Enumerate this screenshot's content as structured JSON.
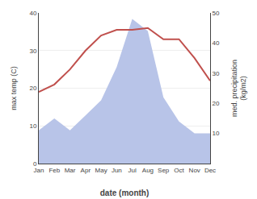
{
  "chart_data": {
    "type": "line",
    "categories": [
      "Jan",
      "Feb",
      "Mar",
      "Apr",
      "May",
      "Jun",
      "Jul",
      "Aug",
      "Sep",
      "Oct",
      "Nov",
      "Dec"
    ],
    "series": [
      {
        "type": "area",
        "axis": "y2",
        "color": "#b8c4e8",
        "values": [
          11,
          15,
          11,
          16,
          21,
          32,
          48,
          44,
          22,
          14,
          10,
          10
        ]
      },
      {
        "type": "line",
        "color": "#c0504d",
        "values": [
          19,
          21,
          25,
          30,
          34,
          35.5,
          35.5,
          36,
          33,
          33,
          28,
          22
        ]
      }
    ],
    "xlabel": "date (month)",
    "ylabel": "max temp (C)",
    "y2label": "med. precipitation\n(kg/m2)",
    "ylim": [
      0,
      40
    ],
    "yticks": [
      0,
      10,
      20,
      30,
      40
    ],
    "y2lim": [
      0,
      50
    ],
    "y2ticks": [
      10,
      20,
      30,
      40,
      50
    ],
    "grid": true
  }
}
